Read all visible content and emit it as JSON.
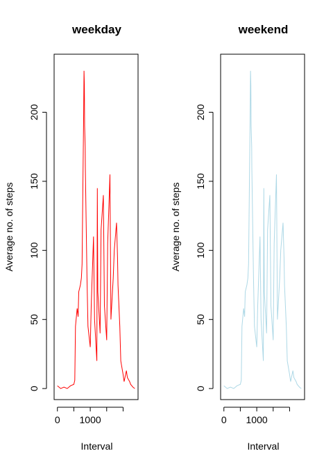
{
  "chart_data": [
    {
      "type": "line",
      "title": "weekday",
      "xlabel": "Interval",
      "ylabel": "Average no. of steps",
      "color": "#ff0000",
      "xlim": [
        -100,
        2455
      ],
      "ylim": [
        -8,
        242
      ],
      "xticks": [
        0,
        500,
        1000,
        1500,
        2000
      ],
      "xticklabels": [
        "0",
        "",
        "1000",
        "",
        ""
      ],
      "yticks": [
        0,
        50,
        100,
        150,
        200
      ],
      "yticklabels": [
        "0",
        "50",
        "100",
        "150",
        "200"
      ],
      "series": [
        {
          "x": [
            0,
            100,
            200,
            300,
            400,
            500,
            530,
            550,
            600,
            630,
            650,
            700,
            730,
            750,
            800,
            810,
            820,
            830,
            845,
            850,
            900,
            930,
            1000,
            1030,
            1100,
            1130,
            1200,
            1215,
            1230,
            1300,
            1330,
            1400,
            1430,
            1500,
            1530,
            1600,
            1630,
            1700,
            1730,
            1800,
            1830,
            1845,
            1900,
            1930,
            2000,
            2030,
            2100,
            2130,
            2200,
            2230,
            2300,
            2355
          ],
          "y": [
            2,
            0,
            1,
            0,
            2,
            3,
            6,
            45,
            58,
            52,
            70,
            75,
            80,
            90,
            200,
            230,
            220,
            190,
            175,
            160,
            80,
            45,
            30,
            60,
            110,
            50,
            20,
            145,
            70,
            40,
            115,
            140,
            60,
            35,
            105,
            155,
            50,
            80,
            100,
            120,
            95,
            75,
            45,
            20,
            10,
            5,
            13,
            8,
            5,
            3,
            1,
            0
          ]
        }
      ]
    },
    {
      "type": "line",
      "title": "weekend",
      "xlabel": "Interval",
      "ylabel": "Average no. of steps",
      "color": "#add8e6",
      "xlim": [
        -100,
        2455
      ],
      "ylim": [
        -8,
        242
      ],
      "xticks": [
        0,
        500,
        1000,
        1500,
        2000
      ],
      "xticklabels": [
        "0",
        "",
        "1000",
        "",
        ""
      ],
      "yticks": [
        0,
        50,
        100,
        150,
        200
      ],
      "yticklabels": [
        "0",
        "50",
        "100",
        "150",
        "200"
      ],
      "series": [
        {
          "x": [
            0,
            100,
            200,
            300,
            400,
            500,
            530,
            550,
            600,
            630,
            650,
            700,
            730,
            750,
            800,
            810,
            820,
            830,
            845,
            850,
            900,
            930,
            1000,
            1030,
            1100,
            1130,
            1200,
            1215,
            1230,
            1300,
            1330,
            1400,
            1430,
            1500,
            1530,
            1600,
            1630,
            1700,
            1730,
            1800,
            1830,
            1845,
            1900,
            1930,
            2000,
            2030,
            2100,
            2130,
            2200,
            2230,
            2300,
            2355
          ],
          "y": [
            2,
            0,
            1,
            0,
            2,
            3,
            6,
            45,
            58,
            52,
            70,
            75,
            80,
            90,
            200,
            230,
            220,
            190,
            175,
            160,
            80,
            45,
            30,
            60,
            110,
            50,
            20,
            145,
            70,
            40,
            115,
            140,
            60,
            35,
            105,
            155,
            50,
            80,
            100,
            120,
            95,
            75,
            45,
            20,
            10,
            5,
            13,
            8,
            5,
            3,
            1,
            0
          ]
        }
      ]
    }
  ]
}
